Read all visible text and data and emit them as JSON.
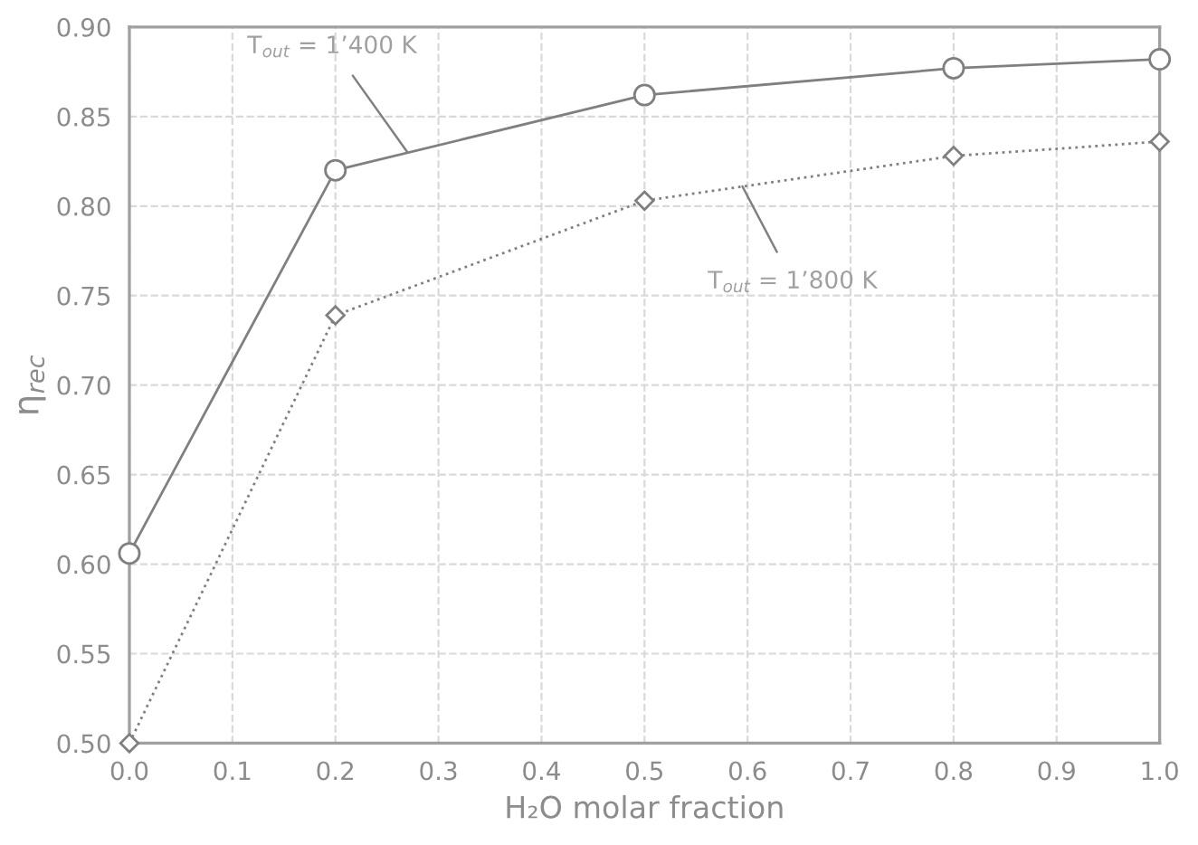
{
  "chart_data": {
    "type": "line",
    "xlabel": "H₂O molar fraction",
    "ylabel": "η$_{rec}$",
    "x": [
      0.0,
      0.2,
      0.5,
      0.8,
      1.0
    ],
    "series": [
      {
        "color": "#808080",
        "marker": "circle",
        "line_style": "solid",
        "values": [
          0.606,
          0.82,
          0.862,
          0.877,
          0.882
        ]
      },
      {
        "color": "#808080",
        "marker": "diamond",
        "line_style": "dotted",
        "values": [
          0.5,
          0.739,
          0.803,
          0.828,
          0.836
        ]
      }
    ],
    "annotations": [
      {
        "text": "T$_{out}$ = 1’400 K",
        "x": 0.27,
        "y": 0.83
      },
      {
        "text": "T$_{out}$ = 1’800 K",
        "x": 0.595,
        "y": 0.811
      }
    ],
    "xlim": [
      0.0,
      1.0
    ],
    "xticks": [
      {
        "value": 0.0,
        "label": "0.0"
      },
      0.1,
      0.2,
      0.3,
      0.4,
      0.5,
      0.6,
      0.7,
      0.8,
      0.9,
      {
        "value": 1.0,
        "label": "1.0"
      }
    ],
    "ylim": [
      0.5,
      0.9
    ],
    "yticks": [
      {
        "value": 0.5,
        "label": "0.50"
      },
      0.55,
      {
        "value": 0.6,
        "label": "0.60"
      },
      0.65,
      {
        "value": 0.7,
        "label": "0.70"
      },
      0.75,
      {
        "value": 0.8,
        "label": "0.80"
      },
      0.85,
      {
        "value": 0.9,
        "label": "0.90"
      }
    ],
    "grid": true
  }
}
